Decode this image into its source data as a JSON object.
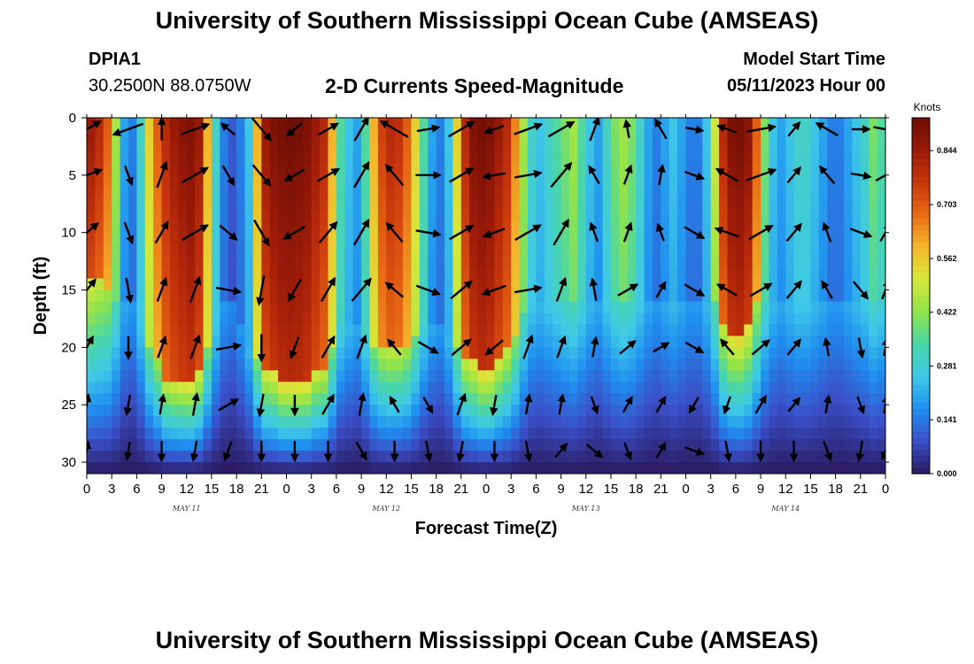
{
  "header": {
    "title": "University of Southern Mississippi Ocean Cube (AMSEAS)",
    "station_id": "DPIA1",
    "station_coords": "30.2500N  88.0750W",
    "subtitle": "2-D Currents Speed-Magnitude",
    "start_label": "Model Start Time",
    "start_value": "05/11/2023 Hour 00"
  },
  "footer": {
    "title": "University of Southern Mississippi Ocean Cube (AMSEAS)"
  },
  "colors": {
    "ramp": [
      "#2a1a5e",
      "#3a4fc8",
      "#1f8ff0",
      "#3ec8e8",
      "#4ad6a8",
      "#8fe34a",
      "#d6e83a",
      "#f5b72a",
      "#e86b14",
      "#c8360c",
      "#9a1a08",
      "#6e0e04"
    ]
  },
  "chart_data": {
    "type": "heatmap",
    "title": "2-D Currents Speed-Magnitude",
    "xlabel": "Forecast Time(Z)",
    "ylabel": "Depth (ft)",
    "x_ticks": [
      "0",
      "3",
      "6",
      "9",
      "12",
      "15",
      "18",
      "21",
      "0",
      "3",
      "6",
      "9",
      "12",
      "15",
      "18",
      "21",
      "0",
      "3",
      "6",
      "9",
      "12",
      "15",
      "18",
      "21",
      "0",
      "3",
      "6",
      "9",
      "12",
      "15",
      "18",
      "21",
      "0"
    ],
    "x_range_hours": [
      0,
      96
    ],
    "day_labels": [
      {
        "text": "MAY 11",
        "hour": 12
      },
      {
        "text": "MAY 12",
        "hour": 36
      },
      {
        "text": "MAY 13",
        "hour": 60
      },
      {
        "text": "MAY 14",
        "hour": 84
      }
    ],
    "y_ticks": [
      "0",
      "5",
      "10",
      "15",
      "20",
      "25",
      "30"
    ],
    "y_range_ft": [
      0,
      31
    ],
    "colorbar": {
      "unit": "Knots",
      "range": [
        0.0,
        0.93
      ],
      "labels": [
        "0.844",
        "0.703",
        "0.562",
        "0.422",
        "0.281",
        "0.141",
        "0.000"
      ]
    },
    "speed_profile": {
      "hours": [
        0,
        1,
        2,
        3,
        4,
        5,
        6,
        7,
        8,
        9,
        10,
        11,
        12,
        13,
        14,
        15,
        16,
        17,
        18,
        19,
        20,
        21,
        22,
        23,
        24,
        25,
        26,
        27,
        28,
        29,
        30,
        31,
        32,
        33,
        34,
        35,
        36,
        37,
        38,
        39,
        40,
        41,
        42,
        43,
        44,
        45,
        46,
        47,
        48,
        49,
        50,
        51,
        52,
        53,
        54,
        55,
        56,
        57,
        58,
        59,
        60,
        61,
        62,
        63,
        64,
        65,
        66,
        67,
        68,
        69,
        70,
        71,
        72,
        73,
        74,
        75,
        76,
        77,
        78,
        79,
        80,
        81,
        82,
        83,
        84,
        85,
        86,
        87,
        88,
        89,
        90,
        91,
        92,
        93,
        94,
        95,
        96
      ],
      "surface_knots": [
        0.85,
        0.8,
        0.7,
        0.45,
        0.2,
        0.15,
        0.3,
        0.55,
        0.7,
        0.8,
        0.85,
        0.88,
        0.9,
        0.85,
        0.6,
        0.3,
        0.15,
        0.1,
        0.15,
        0.25,
        0.6,
        0.85,
        0.9,
        0.92,
        0.93,
        0.92,
        0.9,
        0.85,
        0.8,
        0.6,
        0.35,
        0.25,
        0.2,
        0.35,
        0.6,
        0.75,
        0.8,
        0.78,
        0.7,
        0.55,
        0.35,
        0.2,
        0.15,
        0.25,
        0.55,
        0.8,
        0.9,
        0.92,
        0.9,
        0.85,
        0.8,
        0.65,
        0.45,
        0.3,
        0.25,
        0.3,
        0.35,
        0.4,
        0.45,
        0.35,
        0.25,
        0.2,
        0.3,
        0.4,
        0.45,
        0.4,
        0.3,
        0.2,
        0.15,
        0.2,
        0.25,
        0.2,
        0.15,
        0.15,
        0.25,
        0.5,
        0.8,
        0.9,
        0.92,
        0.88,
        0.7,
        0.4,
        0.25,
        0.2,
        0.25,
        0.3,
        0.3,
        0.25,
        0.2,
        0.15,
        0.15,
        0.2,
        0.25,
        0.3,
        0.4,
        0.35,
        0.3
      ],
      "high_speed_depth_ft": [
        14,
        14,
        15,
        16,
        16,
        16,
        18,
        20,
        21,
        23,
        23,
        23,
        23,
        22,
        20,
        18,
        16,
        16,
        18,
        20,
        21,
        22,
        22,
        23,
        23,
        23,
        23,
        22,
        22,
        20,
        18,
        18,
        18,
        19,
        20,
        20,
        20,
        20,
        20,
        19,
        18,
        18,
        18,
        19,
        20,
        21,
        21,
        22,
        22,
        21,
        20,
        19,
        17,
        16,
        16,
        16,
        16,
        16,
        16,
        16,
        16,
        16,
        16,
        16,
        16,
        16,
        16,
        16,
        16,
        16,
        16,
        16,
        16,
        16,
        16,
        16,
        18,
        19,
        19,
        18,
        16,
        16,
        16,
        16,
        16,
        16,
        16,
        16,
        16,
        16,
        16,
        16,
        16,
        16,
        16,
        16,
        16
      ]
    },
    "vectors": {
      "hours": [
        0,
        5,
        9,
        13,
        17,
        21,
        25,
        29,
        33,
        37,
        41,
        45,
        49,
        53,
        57,
        61,
        65,
        69,
        73,
        77,
        81,
        85,
        89,
        93,
        96
      ],
      "depths_ft": [
        1,
        5,
        10,
        15,
        20,
        25,
        29
      ],
      "direction_deg": [
        [
          60,
          250,
          0,
          70,
          310,
          140,
          230,
          60,
          30,
          300,
          80,
          60,
          250,
          70,
          60,
          20,
          350,
          330,
          100,
          290,
          80,
          40,
          300,
          90,
          100
        ],
        [
          70,
          160,
          20,
          60,
          150,
          140,
          240,
          60,
          30,
          320,
          90,
          60,
          260,
          80,
          40,
          330,
          20,
          10,
          110,
          300,
          70,
          40,
          320,
          100,
          60
        ],
        [
          50,
          160,
          30,
          60,
          130,
          150,
          240,
          40,
          30,
          320,
          100,
          60,
          250,
          60,
          30,
          340,
          20,
          340,
          120,
          290,
          60,
          40,
          340,
          110,
          30
        ],
        [
          40,
          170,
          20,
          20,
          100,
          190,
          210,
          30,
          40,
          310,
          110,
          50,
          250,
          80,
          20,
          350,
          60,
          30,
          120,
          300,
          60,
          40,
          330,
          140,
          20
        ],
        [
          30,
          180,
          20,
          20,
          80,
          180,
          200,
          30,
          20,
          320,
          120,
          50,
          230,
          20,
          20,
          10,
          50,
          60,
          120,
          320,
          50,
          40,
          350,
          170,
          10
        ],
        [
          10,
          190,
          10,
          10,
          60,
          190,
          180,
          30,
          10,
          330,
          150,
          20,
          190,
          10,
          10,
          160,
          30,
          30,
          210,
          200,
          30,
          40,
          10,
          160,
          10
        ],
        [
          10,
          190,
          180,
          190,
          200,
          180,
          180,
          180,
          150,
          180,
          170,
          190,
          180,
          170,
          40,
          130,
          160,
          30,
          110,
          170,
          180,
          180,
          160,
          190,
          200
        ]
      ],
      "speed_knots": [
        [
          0.9,
          0.9,
          0.5,
          0.8,
          0.3,
          0.8,
          0.4,
          0.5,
          0.7,
          0.9,
          0.5,
          0.8,
          0.4,
          0.8,
          0.8,
          0.6,
          0.3,
          0.5,
          0.3,
          0.4,
          0.8,
          0.3,
          0.6,
          0.3,
          0.6
        ],
        [
          0.9,
          0.4,
          0.7,
          0.8,
          0.5,
          0.7,
          0.5,
          0.6,
          0.8,
          0.7,
          0.6,
          0.7,
          0.5,
          0.7,
          0.9,
          0.4,
          0.4,
          0.4,
          0.4,
          0.6,
          0.9,
          0.4,
          0.5,
          0.4,
          0.5
        ],
        [
          0.8,
          0.5,
          0.6,
          0.8,
          0.5,
          0.8,
          0.6,
          0.7,
          0.8,
          0.6,
          0.6,
          0.7,
          0.5,
          0.8,
          0.8,
          0.4,
          0.4,
          0.3,
          0.5,
          0.6,
          0.7,
          0.5,
          0.4,
          0.5,
          0.4
        ],
        [
          0.7,
          0.6,
          0.6,
          0.7,
          0.6,
          0.8,
          0.6,
          0.7,
          0.8,
          0.5,
          0.6,
          0.7,
          0.6,
          0.7,
          0.6,
          0.5,
          0.5,
          0.3,
          0.5,
          0.5,
          0.6,
          0.5,
          0.4,
          0.5,
          0.4
        ],
        [
          0.6,
          0.5,
          0.5,
          0.6,
          0.6,
          0.7,
          0.5,
          0.6,
          0.6,
          0.4,
          0.5,
          0.6,
          0.5,
          0.6,
          0.5,
          0.4,
          0.4,
          0.3,
          0.4,
          0.4,
          0.5,
          0.4,
          0.3,
          0.4,
          0.3
        ],
        [
          0.4,
          0.4,
          0.4,
          0.5,
          0.5,
          0.5,
          0.4,
          0.5,
          0.5,
          0.3,
          0.3,
          0.5,
          0.4,
          0.4,
          0.4,
          0.3,
          0.3,
          0.3,
          0.3,
          0.3,
          0.4,
          0.3,
          0.3,
          0.3,
          0.3
        ],
        [
          0.3,
          0.3,
          0.4,
          0.4,
          0.4,
          0.4,
          0.4,
          0.4,
          0.4,
          0.4,
          0.4,
          0.4,
          0.4,
          0.4,
          0.3,
          0.4,
          0.3,
          0.3,
          0.4,
          0.4,
          0.4,
          0.4,
          0.4,
          0.4,
          0.3
        ]
      ]
    }
  }
}
